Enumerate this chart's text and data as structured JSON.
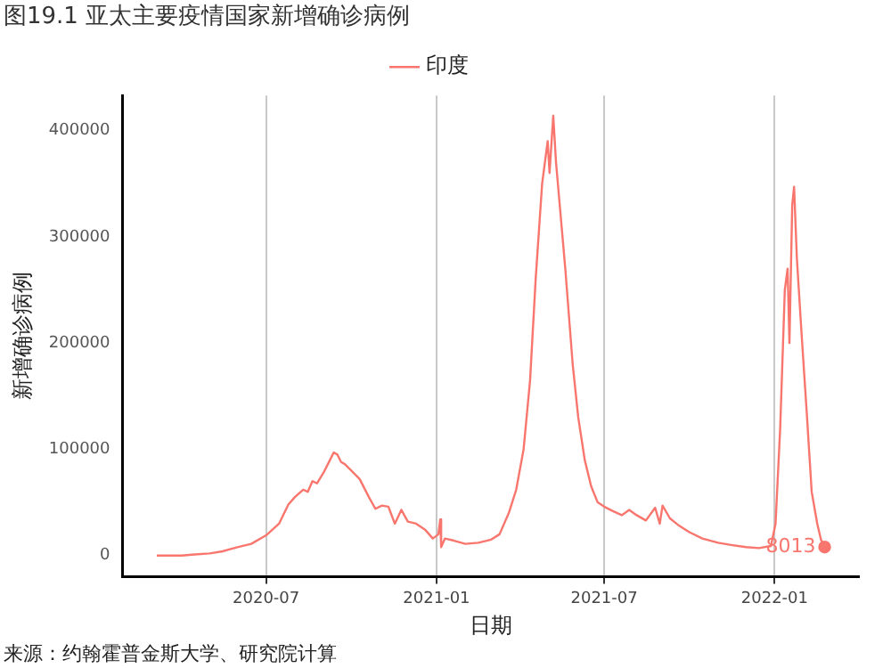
{
  "chart_data": {
    "type": "line",
    "title": "图19.1 亚太主要疫情国家新增确诊病例",
    "xlabel": "日期",
    "ylabel": "新增确诊病例",
    "legend": "top",
    "grid": "x",
    "xlim": [
      "2020-01-28",
      "2022-04-02"
    ],
    "xticks": [
      "2020-07",
      "2021-01",
      "2021-07",
      "2022-01"
    ],
    "ylim": [
      -20000,
      433000
    ],
    "yticks": [
      0,
      100000,
      200000,
      300000,
      400000
    ],
    "series": [
      {
        "name": "印度",
        "color": "#f8766d",
        "x": [
          "2020-03-05",
          "2020-04-01",
          "2020-04-15",
          "2020-05-01",
          "2020-05-15",
          "2020-06-01",
          "2020-06-15",
          "2020-07-01",
          "2020-07-15",
          "2020-07-25",
          "2020-08-01",
          "2020-08-10",
          "2020-08-15",
          "2020-08-20",
          "2020-08-25",
          "2020-09-01",
          "2020-09-08",
          "2020-09-12",
          "2020-09-16",
          "2020-09-20",
          "2020-09-24",
          "2020-10-01",
          "2020-10-10",
          "2020-10-20",
          "2020-10-27",
          "2020-11-03",
          "2020-11-10",
          "2020-11-17",
          "2020-11-24",
          "2020-12-01",
          "2020-12-10",
          "2020-12-20",
          "2020-12-28",
          "2021-01-03",
          "2021-01-05",
          "2021-01-06",
          "2021-01-10",
          "2021-01-20",
          "2021-02-01",
          "2021-02-15",
          "2021-03-01",
          "2021-03-10",
          "2021-03-20",
          "2021-03-28",
          "2021-04-05",
          "2021-04-12",
          "2021-04-18",
          "2021-04-25",
          "2021-05-01",
          "2021-05-03",
          "2021-05-07",
          "2021-05-10",
          "2021-05-15",
          "2021-05-20",
          "2021-05-28",
          "2021-06-03",
          "2021-06-10",
          "2021-06-17",
          "2021-06-24",
          "2021-07-01",
          "2021-07-10",
          "2021-07-20",
          "2021-07-28",
          "2021-08-05",
          "2021-08-15",
          "2021-08-25",
          "2021-08-30",
          "2021-09-02",
          "2021-09-10",
          "2021-09-20",
          "2021-10-01",
          "2021-10-15",
          "2021-11-01",
          "2021-11-15",
          "2021-12-01",
          "2021-12-15",
          "2021-12-28",
          "2022-01-02",
          "2022-01-07",
          "2022-01-12",
          "2022-01-15",
          "2022-01-17",
          "2022-01-20",
          "2022-01-22",
          "2022-01-25",
          "2022-01-30",
          "2022-02-05",
          "2022-02-10",
          "2022-02-16",
          "2022-02-20",
          "2022-02-24"
        ],
        "values": [
          0,
          0,
          1000,
          2000,
          4000,
          8000,
          11000,
          19000,
          30000,
          48000,
          55000,
          62000,
          60000,
          70000,
          68000,
          78000,
          90000,
          97000,
          95000,
          88000,
          86000,
          80000,
          72000,
          55000,
          44000,
          47000,
          46000,
          30000,
          43000,
          32000,
          30000,
          24000,
          16000,
          20000,
          34000,
          8000,
          16000,
          14000,
          11000,
          12000,
          15000,
          20000,
          40000,
          62000,
          100000,
          165000,
          260000,
          350000,
          390000,
          360000,
          414000,
          370000,
          320000,
          270000,
          180000,
          130000,
          90000,
          65000,
          50000,
          46000,
          42000,
          38000,
          43000,
          38000,
          33000,
          45000,
          30000,
          47000,
          35000,
          28000,
          22000,
          16000,
          12000,
          10000,
          8000,
          7000,
          9000,
          30000,
          120000,
          250000,
          270000,
          200000,
          330000,
          347000,
          280000,
          210000,
          130000,
          60000,
          30000,
          15000,
          8013
        ]
      }
    ],
    "annotations": [
      {
        "text": "8013",
        "x": "2022-02-24",
        "y": 8013
      },
      "来源：约翰霍普金斯大学、研究院计算"
    ]
  }
}
